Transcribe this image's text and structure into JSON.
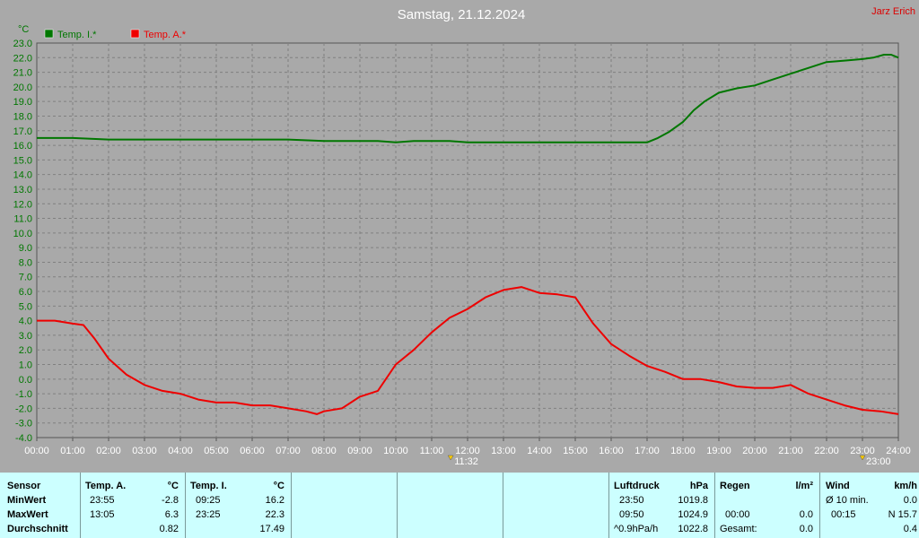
{
  "header": {
    "title": "Samstag, 21.12.2024",
    "author": "Jarz Erich"
  },
  "chart_data": {
    "type": "line",
    "ylabel": "°C",
    "ylim": [
      -4.0,
      23.0
    ],
    "xlim": [
      0,
      24
    ],
    "y_ticks": [
      "23.0",
      "22.0",
      "21.0",
      "20.0",
      "19.0",
      "18.0",
      "17.0",
      "16.0",
      "15.0",
      "14.0",
      "13.0",
      "12.0",
      "11.0",
      "10.0",
      "9.0",
      "8.0",
      "7.0",
      "6.0",
      "5.0",
      "4.0",
      "3.0",
      "2.0",
      "1.0",
      "0.0",
      "-1.0",
      "-2.0",
      "-3.0",
      "-4.0"
    ],
    "x_ticks": [
      "00:00",
      "01:00",
      "02:00",
      "03:00",
      "04:00",
      "05:00",
      "06:00",
      "07:00",
      "08:00",
      "09:00",
      "10:00",
      "11:00",
      "12:00",
      "13:00",
      "14:00",
      "15:00",
      "16:00",
      "17:00",
      "18:00",
      "19:00",
      "20:00",
      "21:00",
      "22:00",
      "23:00",
      "24:00"
    ],
    "grid": true,
    "legend": "top-left",
    "markers": [
      {
        "x": 11.53,
        "label": "11:32"
      },
      {
        "x": 23.0,
        "label": "23:00"
      }
    ],
    "series": [
      {
        "name": "Temp. I.*",
        "color": "#007700",
        "x": [
          0,
          1,
          2,
          3,
          4,
          5,
          6,
          7,
          8,
          9,
          9.5,
          10,
          10.5,
          11,
          11.5,
          12,
          13,
          14,
          15,
          16,
          16.5,
          17,
          17.3,
          17.6,
          18,
          18.3,
          18.6,
          19,
          19.5,
          20,
          20.5,
          21,
          21.5,
          22,
          22.5,
          23,
          23.3,
          23.6,
          23.8,
          24
        ],
        "y": [
          16.5,
          16.5,
          16.4,
          16.4,
          16.4,
          16.4,
          16.4,
          16.4,
          16.3,
          16.3,
          16.3,
          16.2,
          16.3,
          16.3,
          16.3,
          16.2,
          16.2,
          16.2,
          16.2,
          16.2,
          16.2,
          16.2,
          16.5,
          16.9,
          17.6,
          18.4,
          19.0,
          19.6,
          19.9,
          20.1,
          20.5,
          20.9,
          21.3,
          21.7,
          21.8,
          21.9,
          22.0,
          22.2,
          22.2,
          22.0
        ]
      },
      {
        "name": "Temp. A.*",
        "color": "#ee0000",
        "x": [
          0,
          0.5,
          1,
          1.3,
          1.6,
          2,
          2.5,
          3,
          3.5,
          4,
          4.5,
          5,
          5.5,
          6,
          6.5,
          7,
          7.5,
          7.8,
          8,
          8.5,
          9,
          9.5,
          10,
          10.5,
          11,
          11.5,
          12,
          12.5,
          13,
          13.5,
          14,
          14.5,
          15,
          15.5,
          16,
          16.5,
          17,
          17.5,
          18,
          18.5,
          19,
          19.5,
          20,
          20.5,
          21,
          21.5,
          22,
          22.5,
          23,
          23.5,
          24
        ],
        "y": [
          4.0,
          4.0,
          3.8,
          3.7,
          2.8,
          1.4,
          0.3,
          -0.4,
          -0.8,
          -1.0,
          -1.4,
          -1.6,
          -1.6,
          -1.8,
          -1.8,
          -2.0,
          -2.2,
          -2.4,
          -2.2,
          -2.0,
          -1.2,
          -0.8,
          1.0,
          2.0,
          3.2,
          4.2,
          4.8,
          5.6,
          6.1,
          6.3,
          5.9,
          5.8,
          5.6,
          3.8,
          2.4,
          1.6,
          0.9,
          0.5,
          0.0,
          0.0,
          -0.2,
          -0.5,
          -0.6,
          -0.6,
          -0.4,
          -1.0,
          -1.4,
          -1.8,
          -2.1,
          -2.2,
          -2.4
        ]
      }
    ]
  },
  "table": {
    "sensor": {
      "header": "Sensor",
      "rows": [
        "MinWert",
        "MaxWert",
        "Durchschnitt"
      ]
    },
    "temp_a": {
      "header": "Temp. A.",
      "unit": "°C",
      "min_time": "23:55",
      "min_val": "-2.8",
      "max_time": "13:05",
      "max_val": "6.3",
      "avg": "0.82"
    },
    "temp_i": {
      "header": "Temp. I.",
      "unit": "°C",
      "min_time": "09:25",
      "min_val": "16.2",
      "max_time": "23:25",
      "max_val": "22.3",
      "avg": "17.49"
    },
    "luftdruck": {
      "header": "Luftdruck",
      "unit": "hPa",
      "min_time": "23:50",
      "min_val": "1019.8",
      "max_time": "09:50",
      "max_val": "1024.9",
      "trend_label": "^0.9hPa/h",
      "avg": "1022.8"
    },
    "regen": {
      "header": "Regen",
      "unit": "l/m²",
      "max_time": "00:00",
      "max_val": "0.0",
      "total_label": "Gesamt:",
      "total": "0.0"
    },
    "wind": {
      "header": "Wind",
      "unit": "km/h",
      "avg_label": "Ø 10 min.",
      "avg_val": "0.0",
      "max_time": "00:15",
      "max_val": "N 15.7",
      "avg": "0.4"
    }
  }
}
